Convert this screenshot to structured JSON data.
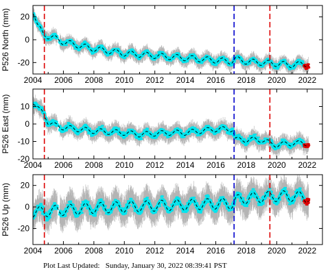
{
  "footer": {
    "label": "Plot Last Updated:",
    "timestamp": "Sunday, January 30, 2022 08:39:41 PST"
  },
  "colors": {
    "error_bar": "#b4b4b4",
    "data": "#00e5ee",
    "model": "#000000",
    "recent": "#dd0000",
    "event_red": "#dd0000",
    "event_blue": "#0000cc"
  },
  "chart_data": [
    {
      "type": "scatter",
      "ylabel": "P526 North (mm)",
      "xlim": [
        2004,
        2023
      ],
      "ylim": [
        -30,
        30
      ],
      "xticks": [
        "2004",
        "2006",
        "2008",
        "2010",
        "2012",
        "2014",
        "2016",
        "2018",
        "2020",
        "2022"
      ],
      "yticks": [
        "20",
        "0",
        "-20"
      ],
      "ytick_values": [
        20,
        0,
        -20
      ],
      "event_lines": [
        {
          "x": 2004.75,
          "color": "red"
        },
        {
          "x": 2017.2,
          "color": "blue"
        },
        {
          "x": 2019.55,
          "color": "red"
        }
      ],
      "trend_points": [
        [
          2004.0,
          26
        ],
        [
          2004.3,
          12
        ],
        [
          2004.7,
          5
        ],
        [
          2005.0,
          3
        ],
        [
          2005.5,
          1
        ],
        [
          2006.0,
          -2
        ],
        [
          2007.0,
          -5
        ],
        [
          2008.0,
          -8
        ],
        [
          2009.0,
          -10
        ],
        [
          2010.0,
          -12
        ],
        [
          2011.0,
          -13
        ],
        [
          2012.0,
          -14
        ],
        [
          2013.0,
          -15
        ],
        [
          2014.0,
          -16
        ],
        [
          2015.0,
          -17
        ],
        [
          2016.0,
          -18
        ],
        [
          2017.0,
          -19
        ],
        [
          2017.3,
          -17
        ],
        [
          2018.0,
          -19
        ],
        [
          2019.0,
          -20
        ],
        [
          2020.0,
          -21
        ],
        [
          2021.0,
          -22
        ],
        [
          2022.1,
          -21
        ]
      ],
      "seasonal_amplitude": 2.5,
      "scatter_spread": 3,
      "error_bar_size": 5
    },
    {
      "type": "scatter",
      "ylabel": "P526 East (mm)",
      "xlim": [
        2004,
        2023
      ],
      "ylim": [
        -20,
        20
      ],
      "xticks": [
        "2004",
        "2006",
        "2008",
        "2010",
        "2012",
        "2014",
        "2016",
        "2018",
        "2020",
        "2022"
      ],
      "yticks": [
        "10",
        "0",
        "-10",
        "-20"
      ],
      "ytick_values": [
        10,
        0,
        -10,
        -20
      ],
      "event_lines": [
        {
          "x": 2004.75,
          "color": "red"
        },
        {
          "x": 2017.2,
          "color": "blue"
        },
        {
          "x": 2019.55,
          "color": "red"
        }
      ],
      "trend_points": [
        [
          2004.0,
          13
        ],
        [
          2004.4,
          8
        ],
        [
          2004.75,
          6
        ],
        [
          2005.0,
          1
        ],
        [
          2005.5,
          -1
        ],
        [
          2006.0,
          -2
        ],
        [
          2007.0,
          -3
        ],
        [
          2008.0,
          -4
        ],
        [
          2009.0,
          -4.5
        ],
        [
          2010.0,
          -5
        ],
        [
          2011.0,
          -6
        ],
        [
          2012.0,
          -5.5
        ],
        [
          2013.0,
          -5
        ],
        [
          2014.0,
          -5
        ],
        [
          2015.0,
          -4
        ],
        [
          2016.0,
          -3
        ],
        [
          2017.1,
          -3
        ],
        [
          2017.3,
          -9
        ],
        [
          2018.0,
          -9
        ],
        [
          2019.0,
          -9
        ],
        [
          2019.55,
          -11
        ],
        [
          2020.0,
          -12
        ],
        [
          2021.0,
          -11
        ],
        [
          2022.1,
          -11
        ]
      ],
      "seasonal_amplitude": 1.5,
      "scatter_spread": 2.5,
      "error_bar_size": 4
    },
    {
      "type": "scatter",
      "ylabel": "P526 Up (mm)",
      "xlim": [
        2004,
        2023
      ],
      "ylim": [
        -35,
        30
      ],
      "xticks": [
        "2004",
        "2006",
        "2008",
        "2010",
        "2012",
        "2014",
        "2016",
        "2018",
        "2020",
        "2022"
      ],
      "yticks": [
        "20",
        "0",
        "-20"
      ],
      "ytick_values": [
        20,
        0,
        -20
      ],
      "event_lines": [
        {
          "x": 2004.75,
          "color": "red"
        },
        {
          "x": 2017.2,
          "color": "blue"
        },
        {
          "x": 2019.55,
          "color": "red"
        }
      ],
      "trend_points": [
        [
          2004.0,
          -5
        ],
        [
          2006.0,
          -3
        ],
        [
          2008.0,
          -1
        ],
        [
          2010.0,
          0
        ],
        [
          2012.0,
          1
        ],
        [
          2014.0,
          2
        ],
        [
          2016.0,
          3
        ],
        [
          2017.1,
          3
        ],
        [
          2017.3,
          6
        ],
        [
          2018.0,
          8
        ],
        [
          2019.0,
          9
        ],
        [
          2020.0,
          10
        ],
        [
          2021.0,
          10
        ],
        [
          2022.1,
          9
        ]
      ],
      "seasonal_amplitude": 5,
      "scatter_spread": 5,
      "error_bar_size": 12
    }
  ]
}
